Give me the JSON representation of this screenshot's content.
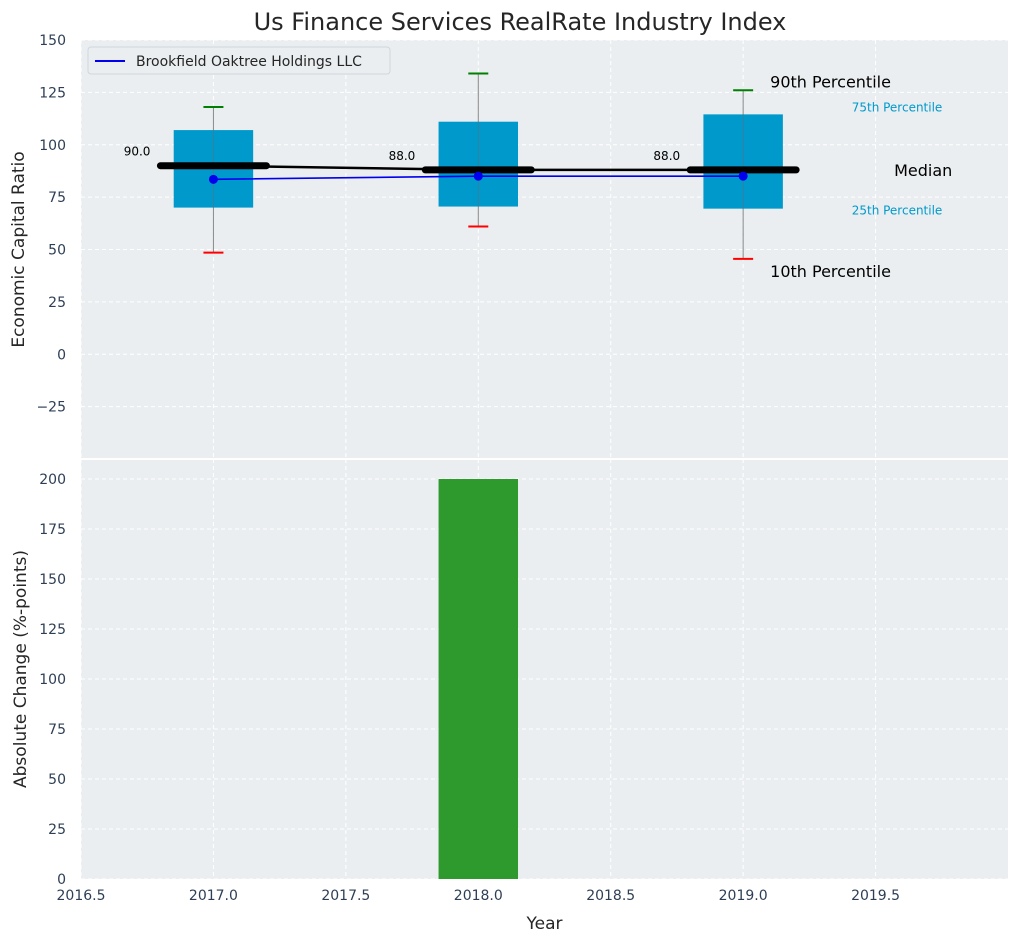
{
  "chart_data": [
    {
      "type": "box",
      "title": "Us Finance Services RealRate Industry Index",
      "ylabel": "Economic Capital Ratio",
      "xlim": [
        2016.5,
        2020.0
      ],
      "ylim": [
        -50,
        150
      ],
      "yticks": [
        -25,
        0,
        25,
        50,
        75,
        100,
        125,
        150
      ],
      "ytick_labels": [
        "−25",
        "0",
        "25",
        "50",
        "75",
        "100",
        "125",
        "150"
      ],
      "grid": true,
      "legend_position": "top-left",
      "boxes": [
        {
          "x": 2017,
          "p10": 48.5,
          "p25": 70,
          "median": 90.0,
          "p75": 107,
          "p90": 118
        },
        {
          "x": 2018,
          "p10": 61,
          "p25": 70.5,
          "median": 88.0,
          "p75": 111,
          "p90": 134
        },
        {
          "x": 2019,
          "p10": 45.5,
          "p25": 69.5,
          "median": 88.0,
          "p75": 114.5,
          "p90": 126
        }
      ],
      "median_labels": [
        "90.0",
        "88.0",
        "88.0"
      ],
      "series": [
        {
          "name": "Brookfield Oaktree Holdings LLC",
          "x": [
            2017,
            2018,
            2019
          ],
          "values": [
            83.5,
            85,
            85
          ],
          "color": "#0000ee"
        }
      ],
      "annotations": {
        "p90": "90th Percentile",
        "p75": "75th Percentile",
        "median": "Median",
        "p25": "25th Percentile",
        "p10": "10th Percentile"
      },
      "colors": {
        "box": "#0099cc",
        "median": "#000000",
        "p90_cap": "#008000",
        "p10_cap": "#ff0000",
        "percentile_text": "#0099cc"
      }
    },
    {
      "type": "bar",
      "xlabel": "Year",
      "ylabel": "Absolute Change (%-points)",
      "xlim": [
        2016.5,
        2020.0
      ],
      "ylim": [
        0,
        210
      ],
      "x": [
        2018
      ],
      "values": [
        200
      ],
      "xticks": [
        2016.5,
        2017.0,
        2017.5,
        2018.0,
        2018.5,
        2019.0,
        2019.5
      ],
      "xtick_labels": [
        "2016.5",
        "2017.0",
        "2017.5",
        "2018.0",
        "2018.5",
        "2019.0",
        "2019.5"
      ],
      "yticks": [
        0,
        25,
        50,
        75,
        100,
        125,
        150,
        175,
        200
      ],
      "ytick_labels": [
        "0",
        "25",
        "50",
        "75",
        "100",
        "125",
        "150",
        "175",
        "200"
      ],
      "grid": true,
      "colors": {
        "bar": "#2e9a2e"
      }
    }
  ]
}
